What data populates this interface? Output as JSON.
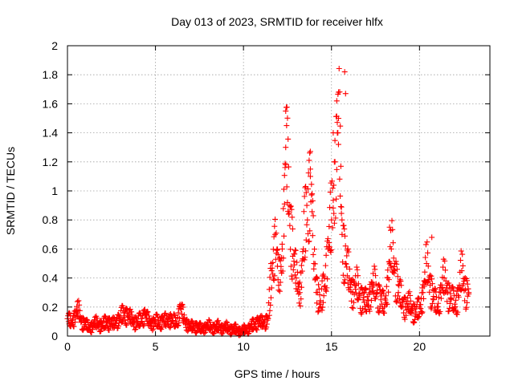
{
  "chart_data": {
    "type": "scatter",
    "title": "Day 013 of 2023, SRMTID for receiver hlfx",
    "xlabel": "GPS time / hours",
    "ylabel": "SRMTID / TECUs",
    "xlim": [
      0,
      24
    ],
    "ylim": [
      0,
      2
    ],
    "xticks": [
      0,
      5,
      10,
      15,
      20
    ],
    "xtick_labels": [
      "0",
      "5",
      "10",
      "15",
      "20"
    ],
    "yticks": [
      0,
      0.2,
      0.4,
      0.6,
      0.8,
      1.0,
      1.2,
      1.4,
      1.6,
      1.8,
      2.0
    ],
    "ytick_labels": [
      "0",
      "0.2",
      "0.4",
      "0.6",
      "0.8",
      "1",
      "1.2",
      "1.4",
      "1.6",
      "1.8",
      "2"
    ],
    "grid": true,
    "marker": "+",
    "color": "#ff0000",
    "series": [
      {
        "name": "SRMTID",
        "x": [
          0.0,
          0.2,
          0.4,
          0.6,
          0.8,
          1.0,
          1.2,
          1.4,
          1.6,
          1.8,
          2.0,
          2.2,
          2.4,
          2.6,
          2.8,
          3.0,
          3.2,
          3.4,
          3.6,
          3.8,
          4.0,
          4.2,
          4.4,
          4.6,
          4.8,
          5.0,
          5.2,
          5.4,
          5.6,
          5.8,
          6.0,
          6.2,
          6.4,
          6.6,
          6.8,
          7.0,
          7.2,
          7.4,
          7.6,
          7.8,
          8.0,
          8.2,
          8.4,
          8.6,
          8.8,
          9.0,
          9.2,
          9.4,
          9.6,
          9.8,
          10.0,
          10.2,
          10.4,
          10.6,
          10.8,
          11.0,
          11.2,
          11.4,
          11.6,
          11.8,
          12.0,
          12.2,
          12.4,
          12.6,
          12.8,
          13.0,
          13.2,
          13.4,
          13.6,
          13.8,
          14.0,
          14.2,
          14.4,
          14.6,
          14.8,
          15.0,
          15.2,
          15.4,
          15.6,
          15.8,
          16.0,
          16.2,
          16.4,
          16.6,
          16.8,
          17.0,
          17.2,
          17.4,
          17.6,
          17.8,
          18.0,
          18.2,
          18.4,
          18.6,
          18.8,
          19.0,
          19.2,
          19.4,
          19.6,
          19.8,
          20.0,
          20.2,
          20.4,
          20.6,
          20.8,
          21.0,
          21.2,
          21.4,
          21.6,
          21.8,
          22.0,
          22.2,
          22.4,
          22.6,
          22.8
        ],
        "y": [
          0.12,
          0.09,
          0.14,
          0.18,
          0.1,
          0.08,
          0.06,
          0.07,
          0.09,
          0.08,
          0.07,
          0.1,
          0.09,
          0.08,
          0.11,
          0.12,
          0.16,
          0.14,
          0.12,
          0.1,
          0.09,
          0.12,
          0.15,
          0.1,
          0.09,
          0.1,
          0.09,
          0.11,
          0.1,
          0.12,
          0.1,
          0.09,
          0.2,
          0.12,
          0.08,
          0.06,
          0.07,
          0.06,
          0.05,
          0.06,
          0.07,
          0.06,
          0.05,
          0.07,
          0.05,
          0.06,
          0.05,
          0.04,
          0.05,
          0.03,
          0.04,
          0.05,
          0.06,
          0.08,
          0.1,
          0.09,
          0.1,
          0.12,
          0.45,
          0.7,
          0.35,
          0.6,
          1.3,
          0.9,
          0.55,
          0.4,
          0.3,
          0.6,
          0.9,
          1.1,
          0.5,
          0.3,
          0.2,
          0.4,
          0.6,
          0.8,
          1.2,
          1.5,
          0.7,
          0.5,
          0.4,
          0.3,
          0.35,
          0.28,
          0.25,
          0.22,
          0.3,
          0.35,
          0.3,
          0.25,
          0.2,
          0.4,
          0.6,
          0.45,
          0.3,
          0.25,
          0.2,
          0.22,
          0.18,
          0.15,
          0.2,
          0.3,
          0.5,
          0.35,
          0.25,
          0.2,
          0.3,
          0.4,
          0.3,
          0.25,
          0.22,
          0.28,
          0.45,
          0.32,
          0.3
        ],
        "outliers_x": [
          12.4,
          12.45,
          13.8,
          15.1,
          15.3,
          15.4,
          15.75,
          15.8,
          18.3,
          20.7
        ],
        "outliers_y": [
          1.55,
          1.45,
          1.15,
          1.4,
          1.62,
          1.68,
          1.82,
          1.67,
          0.75,
          0.68
        ]
      }
    ]
  }
}
